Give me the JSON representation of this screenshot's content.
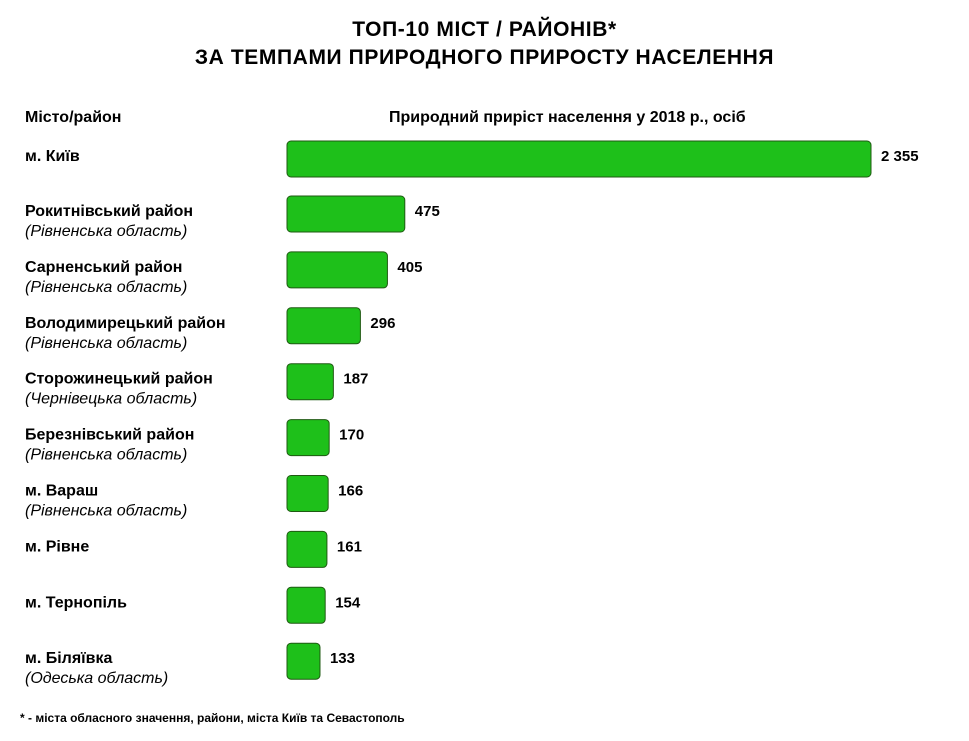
{
  "title_line1": "ТОП-10 МІСТ / РАЙОНІВ*",
  "title_line2": "ЗА ТЕМПАМИ ПРИРОДНОГО ПРИРОСТУ НАСЕЛЕННЯ",
  "column_left": "Місто/район",
  "column_right": "Природний приріст населення у 2018 р., осіб",
  "footnote": "* - міста обласного значення, райони, міста Київ та Севастополь",
  "colors": {
    "bar": "#1ec01a",
    "bar_outline": "#1f5a12"
  },
  "chart_data": {
    "type": "bar",
    "orientation": "horizontal",
    "categories": [
      "м. Київ",
      "Рокитнівський район",
      "Сарненський район",
      "Володимирецький район",
      "Сторожинецький район",
      "Березнівський район",
      "м. Вараш",
      "м. Рівне",
      "м. Тернопіль",
      "м. Біляївка"
    ],
    "regions": [
      "",
      "(Рівненська область)",
      "(Рівненська область)",
      "(Рівненська область)",
      "(Чернівецька область)",
      "(Рівненська область)",
      "(Рівненська область)",
      "",
      "",
      "(Одеська область)"
    ],
    "values": [
      2355,
      475,
      405,
      296,
      187,
      170,
      166,
      161,
      154,
      133
    ],
    "value_labels": [
      "2 355",
      "475",
      "405",
      "296",
      "187",
      "170",
      "166",
      "161",
      "154",
      "133"
    ],
    "xlim": [
      0,
      2355
    ],
    "grid": false,
    "legend": "none"
  }
}
